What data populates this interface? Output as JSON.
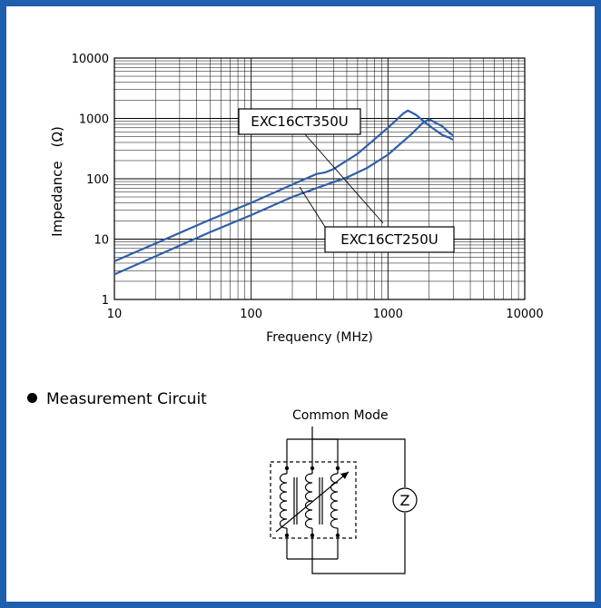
{
  "chart_data": {
    "type": "line",
    "title": "",
    "xlabel": "Frequency (MHz)",
    "ylabel": "Impedance　(Ω)",
    "x_scale": "log",
    "y_scale": "log",
    "xlim": [
      10,
      10000
    ],
    "ylim": [
      1,
      10000
    ],
    "grid": true,
    "x_ticks": [
      "10",
      "100",
      "1000",
      "10000"
    ],
    "y_ticks": [
      "1",
      "10",
      "100",
      "1000",
      "10000"
    ],
    "series": [
      {
        "name": "EXC16CT350U",
        "color": "#2f5fa8",
        "x": [
          10,
          20,
          50,
          100,
          200,
          300,
          350,
          400,
          600,
          1000,
          1300,
          1400,
          1600,
          2000,
          2500,
          2800,
          3000
        ],
        "y": [
          4.3,
          8.5,
          21,
          40,
          80,
          120,
          128,
          145,
          260,
          700,
          1220,
          1350,
          1150,
          760,
          530,
          480,
          440
        ]
      },
      {
        "name": "EXC16CT250U",
        "color": "#2f5fa8",
        "x": [
          10,
          20,
          50,
          100,
          200,
          300,
          500,
          700,
          1000,
          1500,
          1800,
          2000,
          2500,
          2800,
          3000
        ],
        "y": [
          2.6,
          5.2,
          13,
          25,
          50,
          70,
          105,
          150,
          250,
          560,
          850,
          970,
          740,
          580,
          520
        ]
      }
    ],
    "annotations": [
      {
        "text": "EXC16CT350U",
        "series": "EXC16CT350U"
      },
      {
        "text": "EXC16CT250U",
        "series": "EXC16CT250U"
      }
    ]
  },
  "circuit": {
    "heading": "Measurement Circuit",
    "mode_label": "Common Mode",
    "meter_symbol": "Z"
  }
}
